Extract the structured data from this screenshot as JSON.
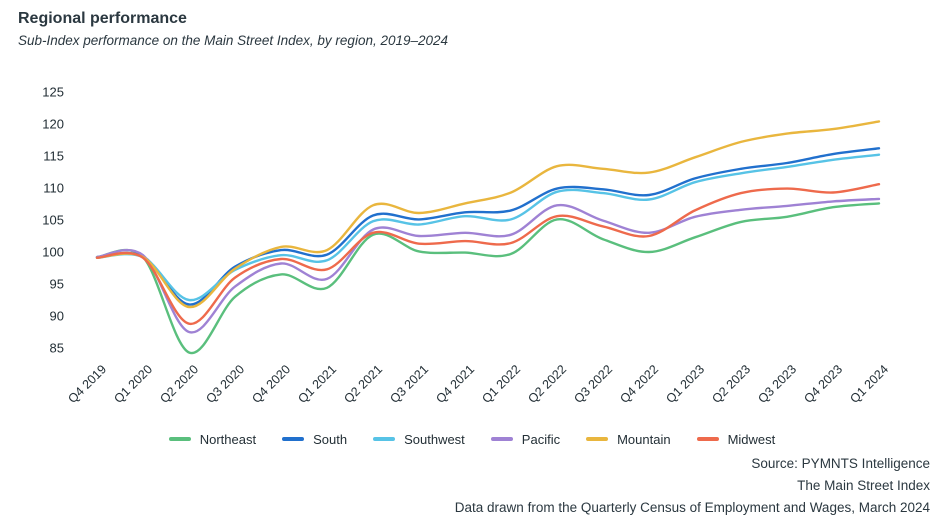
{
  "header": {
    "title": "Regional performance",
    "subtitle": "Sub-Index performance on the Main Street Index, by region, 2019–2024"
  },
  "chart_data": {
    "type": "line",
    "title": "Regional performance",
    "xlabel": "",
    "ylabel": "",
    "grid": false,
    "legend_position": "bottom",
    "ylim": [
      85,
      125
    ],
    "yticks": [
      85,
      90,
      95,
      100,
      105,
      110,
      115,
      120,
      125
    ],
    "categories": [
      "Q4 2019",
      "Q1 2020",
      "Q2 2020",
      "Q3 2020",
      "Q4 2020",
      "Q1 2021",
      "Q2 2021",
      "Q3 2021",
      "Q4 2021",
      "Q1 2022",
      "Q2 2022",
      "Q3 2022",
      "Q4 2022",
      "Q1 2023",
      "Q2 2023",
      "Q3 2023",
      "Q4 2023",
      "Q1 2024"
    ],
    "series": [
      {
        "name": "Northeast",
        "color": "#5abf7d",
        "values": [
          99.2,
          99.2,
          84.3,
          93.0,
          96.5,
          94.4,
          102.7,
          100.1,
          99.9,
          99.7,
          105.1,
          102.0,
          100.0,
          102.3,
          104.7,
          105.5,
          107.0,
          107.6
        ]
      },
      {
        "name": "South",
        "color": "#2170cd",
        "values": [
          99.2,
          99.3,
          91.8,
          97.7,
          100.3,
          99.6,
          105.7,
          105.1,
          106.2,
          106.5,
          109.9,
          109.8,
          108.9,
          111.5,
          113.0,
          113.9,
          115.3,
          116.2
        ]
      },
      {
        "name": "Southwest",
        "color": "#57c3e6",
        "values": [
          99.1,
          99.2,
          92.5,
          97.2,
          99.5,
          98.7,
          104.8,
          104.3,
          105.6,
          105.1,
          109.4,
          109.2,
          108.2,
          110.9,
          112.3,
          113.3,
          114.4,
          115.2
        ]
      },
      {
        "name": "Pacific",
        "color": "#9f82d4",
        "values": [
          99.2,
          99.5,
          87.5,
          94.6,
          98.2,
          95.8,
          103.5,
          102.5,
          103.0,
          102.7,
          107.3,
          104.9,
          103.0,
          105.5,
          106.6,
          107.2,
          107.9,
          108.3
        ]
      },
      {
        "name": "Mountain",
        "color": "#e9b63e",
        "values": [
          99.1,
          99.2,
          91.4,
          97.4,
          100.8,
          100.3,
          107.3,
          106.1,
          107.6,
          109.3,
          113.4,
          113.0,
          112.4,
          114.8,
          117.2,
          118.5,
          119.2,
          120.4
        ]
      },
      {
        "name": "Midwest",
        "color": "#ee6a4c",
        "values": [
          99.1,
          99.1,
          88.8,
          96.0,
          98.9,
          97.3,
          103.0,
          101.3,
          101.7,
          101.4,
          105.6,
          104.0,
          102.5,
          106.5,
          109.2,
          109.9,
          109.3,
          110.6
        ]
      }
    ]
  },
  "footer": {
    "lines": [
      "Source: PYMNTS Intelligence",
      "The Main Street Index",
      "Data drawn from the Quarterly Census of Employment and Wages, March 2024"
    ]
  },
  "colors": {
    "background": "#ffffff",
    "text": "#232f36"
  }
}
